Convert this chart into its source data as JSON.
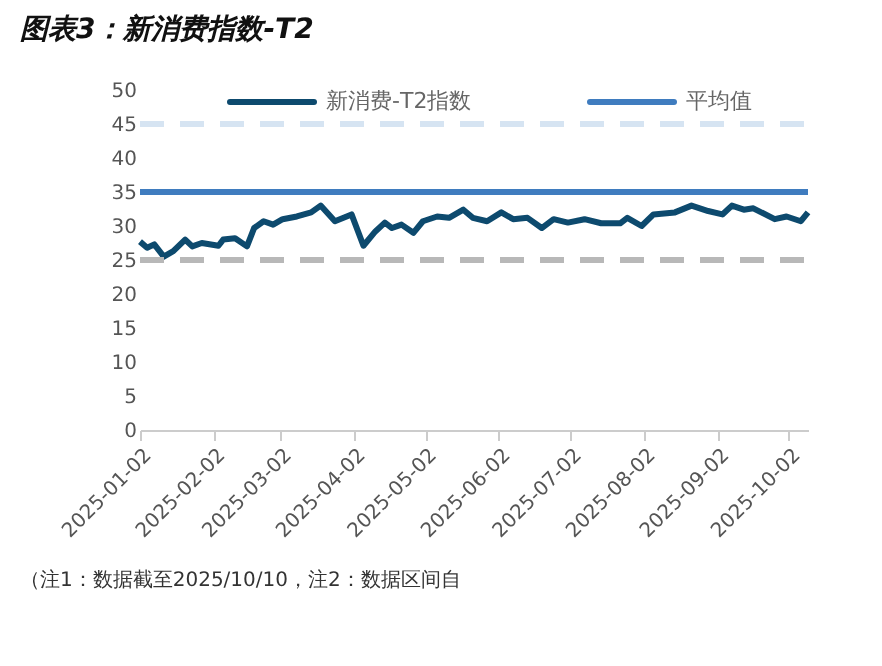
{
  "chart_data": {
    "type": "line",
    "title": "图表3：新消费指数-T2",
    "x": [
      "2025-01-02",
      "2025-01-05",
      "2025-01-08",
      "2025-01-12",
      "2025-01-16",
      "2025-01-21",
      "2025-01-24",
      "2025-01-28",
      "2025-02-04",
      "2025-02-06",
      "2025-02-11",
      "2025-02-16",
      "2025-02-19",
      "2025-02-23",
      "2025-02-27",
      "2025-03-03",
      "2025-03-09",
      "2025-03-15",
      "2025-03-19",
      "2025-03-25",
      "2025-04-01",
      "2025-04-06",
      "2025-04-11",
      "2025-04-15",
      "2025-04-18",
      "2025-04-22",
      "2025-04-27",
      "2025-05-01",
      "2025-05-07",
      "2025-05-12",
      "2025-05-18",
      "2025-05-22",
      "2025-05-28",
      "2025-06-03",
      "2025-06-08",
      "2025-06-14",
      "2025-06-20",
      "2025-06-25",
      "2025-07-01",
      "2025-07-08",
      "2025-07-15",
      "2025-07-23",
      "2025-07-26",
      "2025-08-01",
      "2025-08-06",
      "2025-08-15",
      "2025-08-22",
      "2025-08-29",
      "2025-09-04",
      "2025-09-08",
      "2025-09-13",
      "2025-09-17",
      "2025-09-26",
      "2025-10-01",
      "2025-10-07",
      "2025-10-10"
    ],
    "series": [
      {
        "name": "新消费-T2指数",
        "color": "#0d4a6e",
        "values": [
          27.7,
          26.8,
          27.3,
          25.5,
          26.3,
          28,
          27,
          27.5,
          27.1,
          28,
          28.2,
          27,
          29.7,
          30.7,
          30.2,
          31,
          31.4,
          32,
          33,
          30.7,
          31.7,
          27.1,
          29.2,
          30.5,
          29.7,
          30.2,
          29,
          30.7,
          31.4,
          31.2,
          32.4,
          31.2,
          30.7,
          32,
          31,
          31.2,
          29.7,
          31,
          30.5,
          31,
          30.4,
          30.4,
          31.2,
          30,
          31.7,
          32,
          33,
          32.2,
          31.7,
          33,
          32.4,
          32.6,
          31,
          31.4,
          30.7,
          32
        ]
      }
    ],
    "ref_lines": [
      {
        "axis": "y",
        "value": 45,
        "color": "#d6e4f2",
        "line_style": "dashed"
      },
      {
        "axis": "y",
        "value": 35,
        "label": "平均值",
        "color": "#3f7cbf",
        "line_style": "solid"
      },
      {
        "axis": "y",
        "value": 25,
        "color": "#b8b8b8",
        "line_style": "dashed"
      }
    ],
    "xlim": [
      "2025-01-02",
      "2025-10-10"
    ],
    "xticks": [
      "2025-01-02",
      "2025-02-02",
      "2025-03-02",
      "2025-04-02",
      "2025-05-02",
      "2025-06-02",
      "2025-07-02",
      "2025-08-02",
      "2025-09-02",
      "2025-10-02"
    ],
    "ylim": [
      0,
      50
    ],
    "yticks": [
      0,
      5,
      10,
      15,
      20,
      25,
      30,
      35,
      40,
      45,
      50
    ],
    "grid": false,
    "legend": "top",
    "annotations": [
      "（注1：数据截至2025/10/10，注2：数据区间自"
    ]
  }
}
